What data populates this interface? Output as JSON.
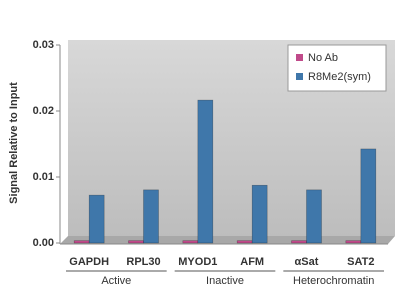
{
  "chart_data": {
    "type": "bar",
    "y_label": "Signal Relative to Input",
    "categories": [
      "GAPDH",
      "RPL30",
      "MYOD1",
      "AFM",
      "αSat",
      "SAT2"
    ],
    "groups": [
      {
        "name": "Active",
        "span": 2
      },
      {
        "name": "Inactive",
        "span": 2
      },
      {
        "name": "Heterochromatin",
        "span": 2
      }
    ],
    "series": [
      {
        "name": "No Ab",
        "color": "#c04a8a",
        "values": [
          0.0002,
          0.0002,
          0.0002,
          0.0002,
          0.0002,
          0.0002
        ]
      },
      {
        "name": "R8Me2(sym)",
        "color": "#3f77aa",
        "values": [
          0.0071,
          0.0079,
          0.0215,
          0.0086,
          0.0079,
          0.0141
        ]
      }
    ],
    "ylim": [
      0,
      0.03
    ],
    "yticks": [
      {
        "value": 0,
        "label": "0.00"
      },
      0.01,
      0.02,
      0.03
    ],
    "grid": false,
    "legend": "top-right"
  }
}
